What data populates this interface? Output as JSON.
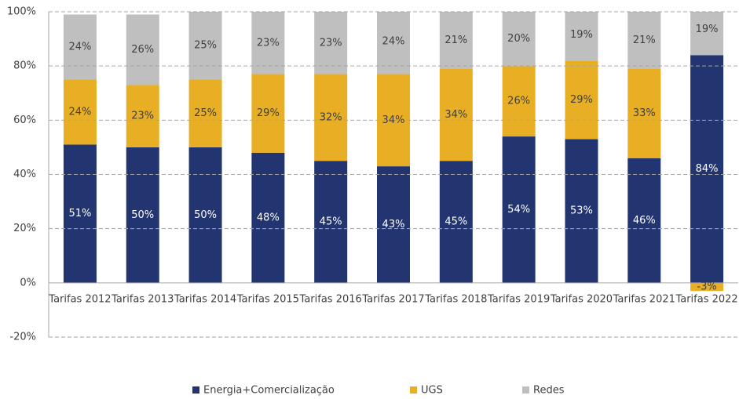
{
  "chart_data": {
    "type": "stacked_bar",
    "categories": [
      "Tarifas 2012",
      "Tarifas 2013",
      "Tarifas 2014",
      "Tarifas 2015",
      "Tarifas 2016",
      "Tarifas 2017",
      "Tarifas 2018",
      "Tarifas 2019",
      "Tarifas 2020",
      "Tarifas 2021",
      "Tarifas 2022"
    ],
    "series": [
      {
        "name": "Energia+Comercialização",
        "color": "#233570",
        "label_color": "#ffffff",
        "values": [
          51,
          50,
          50,
          48,
          45,
          43,
          45,
          54,
          53,
          46,
          84
        ],
        "value_labels": [
          "51%",
          "50%",
          "50%",
          "48%",
          "45%",
          "43%",
          "45%",
          "54%",
          "53%",
          "46%",
          "84%"
        ]
      },
      {
        "name": "UGS",
        "color": "#e8ae24",
        "label_color": "#404040",
        "values": [
          24,
          23,
          25,
          29,
          32,
          34,
          34,
          26,
          29,
          33,
          -3
        ],
        "value_labels": [
          "24%",
          "23%",
          "25%",
          "29%",
          "32%",
          "34%",
          "34%",
          "26%",
          "29%",
          "33%",
          "-3%"
        ]
      },
      {
        "name": "Redes",
        "color": "#bfbfbf",
        "label_color": "#404040",
        "values": [
          24,
          26,
          25,
          23,
          23,
          24,
          21,
          20,
          19,
          21,
          19
        ],
        "value_labels": [
          "24%",
          "26%",
          "25%",
          "23%",
          "23%",
          "24%",
          "21%",
          "20%",
          "19%",
          "21%",
          "19%"
        ]
      }
    ],
    "ylim": [
      -20,
      100
    ],
    "yticks": [
      {
        "value": -20,
        "label": "-20%"
      },
      {
        "value": 0,
        "label": "0%"
      },
      {
        "value": 20,
        "label": "20%"
      },
      {
        "value": 40,
        "label": "40%"
      },
      {
        "value": 60,
        "label": "60%"
      },
      {
        "value": 80,
        "label": "80%"
      },
      {
        "value": 100,
        "label": "100%"
      }
    ],
    "grid": true,
    "legend": "bottom"
  }
}
